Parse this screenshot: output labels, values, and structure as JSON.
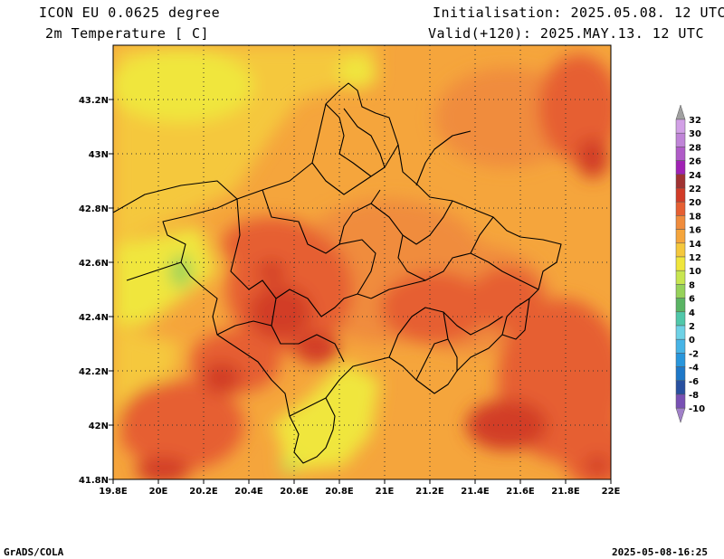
{
  "header": {
    "model": "ICON EU 0.0625 degree",
    "variable": "2m Temperature [ C]",
    "init": "Initialisation: 2025.05.08. 12 UTC",
    "valid": "Valid(+120): 2025.MAY.13. 12 UTC"
  },
  "footer": {
    "software": "GrADS/COLA",
    "timestamp": "2025-05-08-16:25"
  },
  "map": {
    "lon_range": [
      19.8,
      22.0
    ],
    "lat_range": [
      41.8,
      43.4
    ],
    "lon_ticks": [
      "19.8E",
      "20E",
      "20.2E",
      "20.4E",
      "20.6E",
      "20.8E",
      "21E",
      "21.2E",
      "21.4E",
      "21.6E",
      "21.8E",
      "22E"
    ],
    "lat_ticks": [
      "41.8N",
      "42N",
      "42.2N",
      "42.4N",
      "42.6N",
      "42.8N",
      "43N",
      "43.2N"
    ],
    "grid": "dotted"
  },
  "colorbar": {
    "levels": [
      "32",
      "30",
      "28",
      "26",
      "24",
      "22",
      "20",
      "18",
      "16",
      "14",
      "12",
      "10",
      "8",
      "6",
      "4",
      "2",
      "0",
      "-2",
      "-4",
      "-6",
      "-8",
      "-10"
    ],
    "colors": [
      "#a0a0a0",
      "#d2a0e6",
      "#c084d8",
      "#b05cc8",
      "#a022b4",
      "#a03232",
      "#d23c28",
      "#e65f32",
      "#f08c3c",
      "#f5a53c",
      "#f5c83c",
      "#f0e63c",
      "#c8e650",
      "#96d25a",
      "#5ab464",
      "#50c8aa",
      "#6ed2e6",
      "#46b4e6",
      "#2896dc",
      "#1e78c8",
      "#2850a0",
      "#7850b4",
      "#a080c8"
    ]
  }
}
